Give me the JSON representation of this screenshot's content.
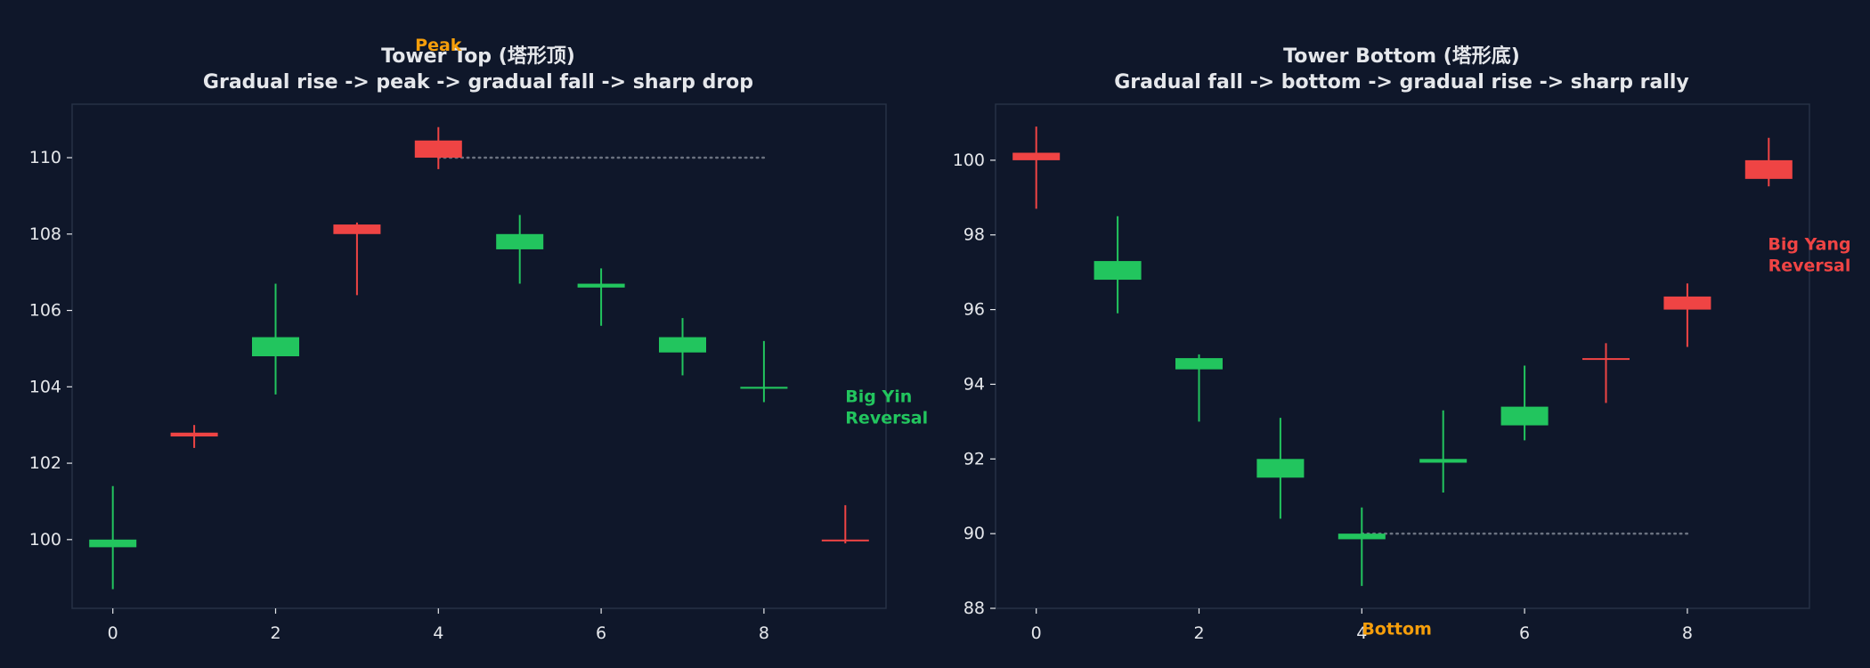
{
  "colors": {
    "background": "#0f172a",
    "plot_background": "#0f172a",
    "frame": "#263145",
    "text": "#e5e7eb",
    "bullish": "#22c55e",
    "bearish": "#ef4444",
    "highlight": "#f59e0b",
    "reference_line": "#6b7280"
  },
  "chart_data": [
    {
      "type": "candlestick",
      "title_lines": [
        "Tower Top (塔形顶)",
        "Gradual rise -> peak -> gradual fall -> sharp drop"
      ],
      "xlim": [
        -0.5,
        9.5
      ],
      "ylim": [
        98.2,
        111.4
      ],
      "xticks": [
        0,
        2,
        4,
        6,
        8
      ],
      "yticks": [
        100,
        102,
        104,
        106,
        108,
        110
      ],
      "candles": [
        {
          "x": 0,
          "open": 100.0,
          "close": 99.8,
          "high": 101.4,
          "low": 98.7
        },
        {
          "x": 1,
          "open": 102.7,
          "close": 102.8,
          "high": 103.0,
          "low": 102.4
        },
        {
          "x": 2,
          "open": 105.3,
          "close": 104.8,
          "high": 106.7,
          "low": 103.8
        },
        {
          "x": 3,
          "open": 108.0,
          "close": 108.25,
          "high": 108.3,
          "low": 106.4
        },
        {
          "x": 4,
          "open": 110.0,
          "close": 110.45,
          "high": 110.8,
          "low": 109.7
        },
        {
          "x": 5,
          "open": 108.0,
          "close": 107.6,
          "high": 108.5,
          "low": 106.7
        },
        {
          "x": 6,
          "open": 106.7,
          "close": 106.6,
          "high": 107.1,
          "low": 105.6
        },
        {
          "x": 7,
          "open": 105.3,
          "close": 104.9,
          "high": 105.8,
          "low": 104.3
        },
        {
          "x": 8,
          "open": 104.0,
          "close": 103.95,
          "high": 105.2,
          "low": 103.6
        },
        {
          "x": 9,
          "open": 100.0,
          "close": 100.0,
          "high": 100.9,
          "low": 99.9
        }
      ],
      "reference_line": {
        "y": 110.0,
        "x_start": 4,
        "x_end": 8
      },
      "annotations": [
        {
          "text_lines": [
            "Peak"
          ],
          "x": 4,
          "y": 112.8,
          "color_key": "highlight",
          "anchor": "middle"
        },
        {
          "text_lines": [
            "Big Yin",
            "Reversal"
          ],
          "x": 9.0,
          "y": 103.6,
          "color_key": "bullish",
          "anchor": "start"
        }
      ]
    },
    {
      "type": "candlestick",
      "title_lines": [
        "Tower Bottom (塔形底)",
        "Gradual fall -> bottom -> gradual rise -> sharp rally"
      ],
      "xlim": [
        -0.5,
        9.5
      ],
      "ylim": [
        88.0,
        101.5
      ],
      "xticks": [
        0,
        2,
        4,
        6,
        8
      ],
      "yticks": [
        88,
        90,
        92,
        94,
        96,
        98,
        100
      ],
      "candles": [
        {
          "x": 0,
          "open": 100.0,
          "close": 100.2,
          "high": 100.9,
          "low": 98.7
        },
        {
          "x": 1,
          "open": 97.3,
          "close": 96.8,
          "high": 98.5,
          "low": 95.9
        },
        {
          "x": 2,
          "open": 94.7,
          "close": 94.4,
          "high": 94.8,
          "low": 93.0
        },
        {
          "x": 3,
          "open": 92.0,
          "close": 91.5,
          "high": 93.1,
          "low": 90.4
        },
        {
          "x": 4,
          "open": 90.0,
          "close": 89.85,
          "high": 90.7,
          "low": 88.6
        },
        {
          "x": 5,
          "open": 92.0,
          "close": 91.9,
          "high": 93.3,
          "low": 91.1
        },
        {
          "x": 6,
          "open": 93.4,
          "close": 92.9,
          "high": 94.5,
          "low": 92.5
        },
        {
          "x": 7,
          "open": 94.7,
          "close": 94.7,
          "high": 95.1,
          "low": 93.5
        },
        {
          "x": 8,
          "open": 96.0,
          "close": 96.35,
          "high": 96.7,
          "low": 95.0
        },
        {
          "x": 9,
          "open": 99.5,
          "close": 100.0,
          "high": 100.6,
          "low": 99.3
        }
      ],
      "reference_line": {
        "y": 90.0,
        "x_start": 4,
        "x_end": 8
      },
      "annotations": [
        {
          "text_lines": [
            "Bottom"
          ],
          "x": 4.43,
          "y": 87.3,
          "color_key": "highlight",
          "anchor": "middle"
        },
        {
          "text_lines": [
            "Big Yang",
            "Reversal"
          ],
          "x": 9.5,
          "y": 97.6,
          "color_key": "bearish",
          "anchor": "middle"
        }
      ]
    }
  ]
}
